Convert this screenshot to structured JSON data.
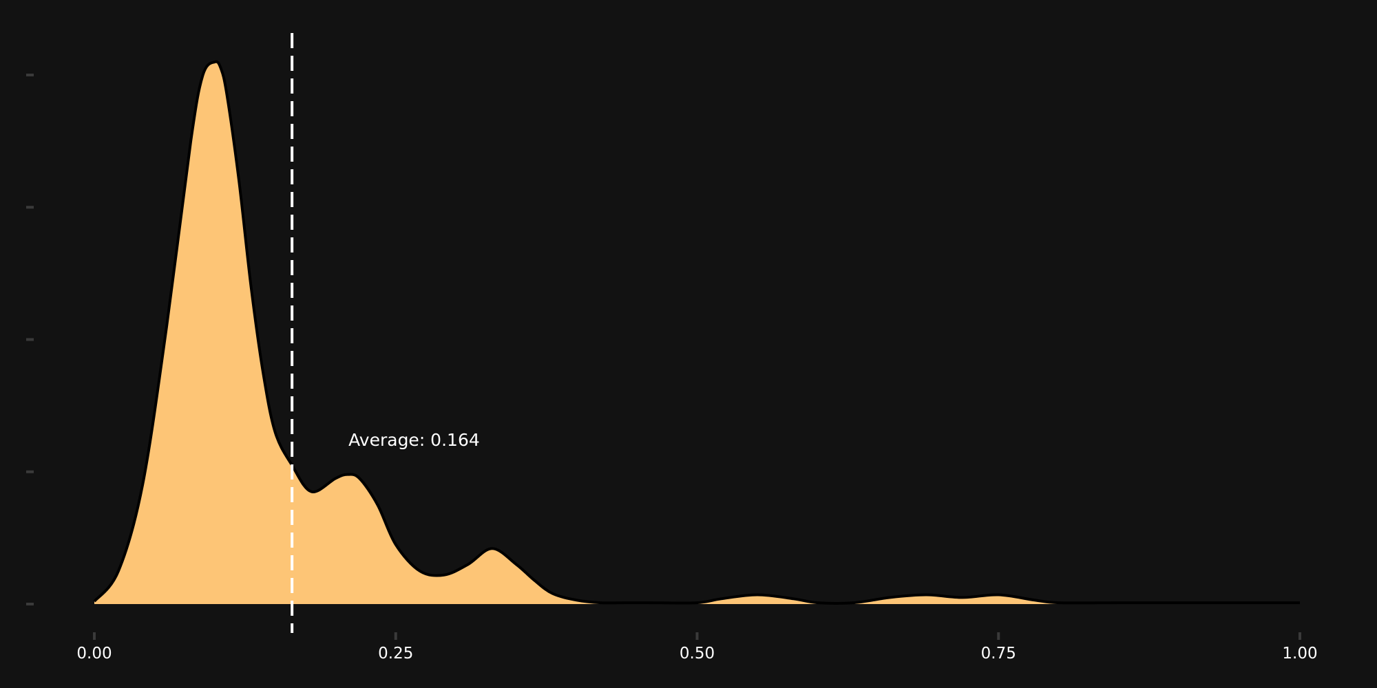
{
  "chart_data": {
    "type": "area",
    "title": "",
    "xlabel": "",
    "ylabel": "",
    "xlim": [
      0,
      1
    ],
    "ylim": [
      0,
      4.1
    ],
    "x_ticks": [
      {
        "value": 0.0,
        "label": "0.00"
      },
      {
        "value": 0.25,
        "label": "0.25"
      },
      {
        "value": 0.5,
        "label": "0.50"
      },
      {
        "value": 0.75,
        "label": "0.75"
      },
      {
        "value": 1.0,
        "label": "1.00"
      }
    ],
    "y_ticks": [
      0,
      1,
      2,
      3,
      4
    ],
    "grid": false,
    "legend": "none",
    "series": [
      {
        "x": [
          0.0,
          0.02,
          0.04,
          0.06,
          0.08,
          0.09,
          0.1,
          0.105,
          0.11,
          0.12,
          0.13,
          0.14,
          0.15,
          0.164,
          0.18,
          0.2,
          0.21,
          0.22,
          0.235,
          0.25,
          0.27,
          0.29,
          0.31,
          0.33,
          0.35,
          0.365,
          0.38,
          0.4,
          0.42,
          0.44,
          0.46,
          0.5,
          0.52,
          0.55,
          0.58,
          0.6,
          0.63,
          0.66,
          0.69,
          0.72,
          0.75,
          0.78,
          0.8,
          0.85,
          0.9,
          1.0
        ],
        "y": [
          0.02,
          0.25,
          0.9,
          2.1,
          3.5,
          4.0,
          4.1,
          4.05,
          3.85,
          3.2,
          2.4,
          1.75,
          1.3,
          1.05,
          0.85,
          0.95,
          0.98,
          0.95,
          0.75,
          0.45,
          0.25,
          0.22,
          0.3,
          0.42,
          0.3,
          0.18,
          0.08,
          0.03,
          0.01,
          0.01,
          0.01,
          0.01,
          0.04,
          0.07,
          0.04,
          0.01,
          0.01,
          0.05,
          0.07,
          0.05,
          0.07,
          0.03,
          0.01,
          0.01,
          0.01,
          0.01
        ],
        "fill": "#FDC576",
        "line": "#000000"
      }
    ],
    "mean_line": {
      "x": 0.164,
      "label": "Average: 0.164",
      "color": "#FFFFFF",
      "style": "dashed"
    },
    "colors": {
      "background": "#121212",
      "fill": "#FDC576",
      "outline": "#000000",
      "tick_mark": "#3A3A3A"
    }
  }
}
